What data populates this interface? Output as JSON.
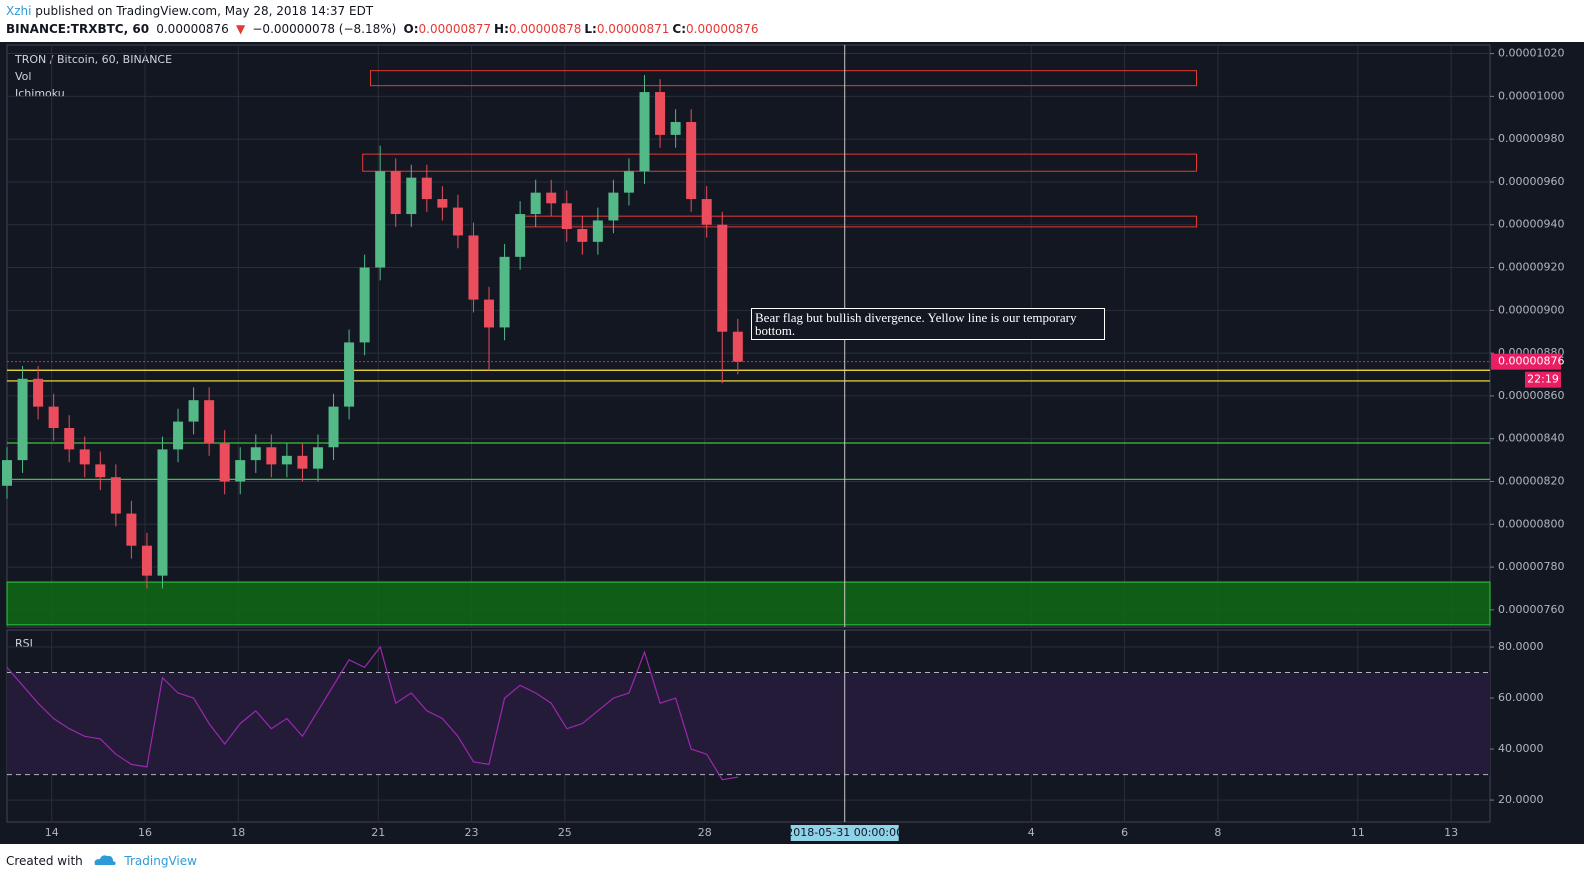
{
  "header": {
    "author": "Xzhi",
    "published": "published on TradingView.com, May 28, 2018 14:37 EDT",
    "symbol": "BINANCE:TRXBTC, 60",
    "price": "0.00000876",
    "arrow": "▼",
    "change": "−0.00000078 (−8.18%)",
    "ohlc": [
      {
        "key": "O:",
        "value": "0.00000877"
      },
      {
        "key": "H:",
        "value": "0.00000878"
      },
      {
        "key": "L:",
        "value": "0.00000871"
      },
      {
        "key": "C:",
        "value": "0.00000876"
      }
    ]
  },
  "legend": {
    "title": "TRON / Bitcoin, 60, BINANCE",
    "items": [
      "Vol",
      "Ichimoku"
    ]
  },
  "annotation": "Bear flag but bullish divergence. Yellow line is our temporary bottom.",
  "footer": {
    "created": "Created with",
    "brand": "TradingView"
  },
  "chart_data": {
    "type": "candlestick",
    "up_color": "#53b987",
    "down_color": "#eb4d5c",
    "grid": true,
    "xlim": [
      "2018-05-13 01:00",
      "2018-06-13 20:00"
    ],
    "xticks": [
      {
        "value": "2018-05-14",
        "label": "14"
      },
      {
        "value": "2018-05-16",
        "label": "16"
      },
      {
        "value": "2018-05-18",
        "label": "18"
      },
      {
        "value": "2018-05-21",
        "label": "21"
      },
      {
        "value": "2018-05-23",
        "label": "23"
      },
      {
        "value": "2018-05-25",
        "label": "25"
      },
      {
        "value": "2018-05-28",
        "label": "28"
      },
      {
        "value": "2018-06-04",
        "label": "4"
      },
      {
        "value": "2018-06-06",
        "label": "6"
      },
      {
        "value": "2018-06-08",
        "label": "8"
      },
      {
        "value": "2018-06-11",
        "label": "11"
      },
      {
        "value": "2018-06-13",
        "label": "13"
      }
    ],
    "ylim": [
      7.52e-06,
      1.024e-05
    ],
    "yticks": [
      {
        "value": 1.02e-05,
        "label": "0.00001020"
      },
      {
        "value": 1e-05,
        "label": "0.00001000"
      },
      {
        "value": 9.8e-06,
        "label": "0.00000980"
      },
      {
        "value": 9.6e-06,
        "label": "0.00000960"
      },
      {
        "value": 9.4e-06,
        "label": "0.00000940"
      },
      {
        "value": 9.2e-06,
        "label": "0.00000920"
      },
      {
        "value": 9e-06,
        "label": "0.00000900"
      },
      {
        "value": 8.8e-06,
        "label": "0.00000880"
      },
      {
        "value": 8.6e-06,
        "label": "0.00000860"
      },
      {
        "value": 8.4e-06,
        "label": "0.00000840"
      },
      {
        "value": 8.2e-06,
        "label": "0.00000820"
      },
      {
        "value": 8e-06,
        "label": "0.00000800"
      },
      {
        "value": 7.8e-06,
        "label": "0.00000780"
      },
      {
        "value": 7.6e-06,
        "label": "0.00000760"
      }
    ],
    "x": [
      "2018-05-13 01:00",
      "2018-05-13 09:00",
      "2018-05-13 17:00",
      "2018-05-14 01:00",
      "2018-05-14 09:00",
      "2018-05-14 17:00",
      "2018-05-15 01:00",
      "2018-05-15 09:00",
      "2018-05-15 17:00",
      "2018-05-16 01:00",
      "2018-05-16 09:00",
      "2018-05-16 17:00",
      "2018-05-17 01:00",
      "2018-05-17 09:00",
      "2018-05-17 17:00",
      "2018-05-18 01:00",
      "2018-05-18 09:00",
      "2018-05-18 17:00",
      "2018-05-19 01:00",
      "2018-05-19 09:00",
      "2018-05-19 17:00",
      "2018-05-20 01:00",
      "2018-05-20 09:00",
      "2018-05-20 17:00",
      "2018-05-21 01:00",
      "2018-05-21 09:00",
      "2018-05-21 17:00",
      "2018-05-22 01:00",
      "2018-05-22 09:00",
      "2018-05-22 17:00",
      "2018-05-23 01:00",
      "2018-05-23 09:00",
      "2018-05-23 17:00",
      "2018-05-24 01:00",
      "2018-05-24 09:00",
      "2018-05-24 17:00",
      "2018-05-25 01:00",
      "2018-05-25 09:00",
      "2018-05-25 17:00",
      "2018-05-26 01:00",
      "2018-05-26 09:00",
      "2018-05-26 17:00",
      "2018-05-27 01:00",
      "2018-05-27 09:00",
      "2018-05-27 17:00",
      "2018-05-28 01:00",
      "2018-05-28 09:00",
      "2018-05-28 17:00"
    ],
    "open": [
      8.18e-06,
      8.3e-06,
      8.68e-06,
      8.55e-06,
      8.45e-06,
      8.35e-06,
      8.28e-06,
      8.22e-06,
      8.05e-06,
      7.9e-06,
      7.76e-06,
      8.35e-06,
      8.48e-06,
      8.58e-06,
      8.38e-06,
      8.2e-06,
      8.3e-06,
      8.36e-06,
      8.28e-06,
      8.32e-06,
      8.26e-06,
      8.36e-06,
      8.55e-06,
      8.85e-06,
      9.2e-06,
      9.65e-06,
      9.45e-06,
      9.62e-06,
      9.52e-06,
      9.48e-06,
      9.35e-06,
      9.05e-06,
      8.92e-06,
      9.25e-06,
      9.45e-06,
      9.55e-06,
      9.5e-06,
      9.38e-06,
      9.32e-06,
      9.42e-06,
      9.55e-06,
      9.65e-06,
      1.002e-05,
      9.82e-06,
      9.88e-06,
      9.52e-06,
      9.4e-06,
      8.9e-06
    ],
    "high": [
      8.36e-06,
      8.74e-06,
      8.74e-06,
      8.61e-06,
      8.51e-06,
      8.41e-06,
      8.34e-06,
      8.28e-06,
      8.11e-06,
      7.96e-06,
      8.41e-06,
      8.54e-06,
      8.64e-06,
      8.64e-06,
      8.44e-06,
      8.36e-06,
      8.42e-06,
      8.42e-06,
      8.38e-06,
      8.38e-06,
      8.42e-06,
      8.61e-06,
      8.91e-06,
      9.26e-06,
      9.77e-06,
      9.71e-06,
      9.68e-06,
      9.68e-06,
      9.58e-06,
      9.54e-06,
      9.41e-06,
      9.11e-06,
      9.31e-06,
      9.51e-06,
      9.61e-06,
      9.61e-06,
      9.56e-06,
      9.44e-06,
      9.48e-06,
      9.61e-06,
      9.71e-06,
      1.01e-05,
      1.008e-05,
      9.94e-06,
      9.94e-06,
      9.58e-06,
      9.46e-06,
      8.96e-06
    ],
    "low": [
      8.12e-06,
      8.24e-06,
      8.49e-06,
      8.39e-06,
      8.29e-06,
      8.22e-06,
      8.16e-06,
      7.99e-06,
      7.84e-06,
      7.7e-06,
      7.7e-06,
      8.29e-06,
      8.42e-06,
      8.32e-06,
      8.14e-06,
      8.14e-06,
      8.24e-06,
      8.22e-06,
      8.22e-06,
      8.2e-06,
      8.2e-06,
      8.3e-06,
      8.49e-06,
      8.79e-06,
      9.14e-06,
      9.39e-06,
      9.39e-06,
      9.46e-06,
      9.42e-06,
      9.29e-06,
      8.99e-06,
      8.72e-06,
      8.86e-06,
      9.19e-06,
      9.39e-06,
      9.44e-06,
      9.32e-06,
      9.26e-06,
      9.26e-06,
      9.36e-06,
      9.49e-06,
      9.59e-06,
      9.76e-06,
      9.76e-06,
      9.46e-06,
      9.34e-06,
      8.66e-06,
      8.7e-06
    ],
    "close": [
      8.3e-06,
      8.68e-06,
      8.55e-06,
      8.45e-06,
      8.35e-06,
      8.28e-06,
      8.22e-06,
      8.05e-06,
      7.9e-06,
      7.76e-06,
      8.35e-06,
      8.48e-06,
      8.58e-06,
      8.38e-06,
      8.2e-06,
      8.3e-06,
      8.36e-06,
      8.28e-06,
      8.32e-06,
      8.26e-06,
      8.36e-06,
      8.55e-06,
      8.85e-06,
      9.2e-06,
      9.65e-06,
      9.45e-06,
      9.62e-06,
      9.52e-06,
      9.48e-06,
      9.35e-06,
      9.05e-06,
      8.92e-06,
      9.25e-06,
      9.45e-06,
      9.55e-06,
      9.5e-06,
      9.38e-06,
      9.32e-06,
      9.42e-06,
      9.55e-06,
      9.65e-06,
      1.002e-05,
      9.82e-06,
      9.88e-06,
      9.52e-06,
      9.4e-06,
      8.9e-06,
      8.76e-06
    ],
    "last_price": {
      "value": 8.76e-06,
      "color": "#e91e63",
      "timer": "22:19"
    },
    "drawings": {
      "rectangles": [
        {
          "x": [
            "2018-05-20 20:00",
            "2018-06-07 13:00"
          ],
          "y": [
            1.005e-05,
            1.012e-05
          ],
          "color": "#e53935"
        },
        {
          "x": [
            "2018-05-20 16:00",
            "2018-06-07 13:00"
          ],
          "y": [
            9.65e-06,
            9.73e-06
          ],
          "color": "#e53935"
        },
        {
          "x": [
            "2018-05-24 00:00",
            "2018-06-07 13:00"
          ],
          "y": [
            9.39e-06,
            9.44e-06
          ],
          "color": "#e53935"
        },
        {
          "y": [
            7.53e-06,
            7.73e-06
          ],
          "color": "#2ecc40",
          "fill": "#116a14"
        }
      ],
      "hlines": [
        {
          "value": 8.72e-06,
          "color": "#ffeb3b"
        },
        {
          "value": 8.67e-06,
          "color": "#ffeb3b"
        },
        {
          "value": 8.38e-06,
          "color": "#3ec43e"
        },
        {
          "value": 8.21e-06,
          "color": "#3ec43e"
        }
      ]
    },
    "crosshair_label": "2018-05-31 00:00:00",
    "rsi": {
      "title": "RSI",
      "color": "#9c27b0",
      "band_color": "#241b38",
      "ylim": [
        11.4,
        85.9
      ],
      "bands": [
        30,
        70
      ],
      "yticks": [
        {
          "value": 80,
          "label": "80.0000"
        },
        {
          "value": 60,
          "label": "60.0000"
        },
        {
          "value": 40,
          "label": "40.0000"
        },
        {
          "value": 20,
          "label": "20.0000"
        }
      ],
      "values": [
        72,
        65,
        58,
        52,
        48,
        45,
        44,
        38,
        34,
        33,
        68,
        62,
        60,
        50,
        42,
        50,
        55,
        48,
        52,
        45,
        55,
        65,
        75,
        72,
        80,
        58,
        62,
        55,
        52,
        45,
        35,
        34,
        60,
        65,
        62,
        58,
        48,
        50,
        55,
        60,
        62,
        78,
        58,
        60,
        40,
        38,
        28,
        29
      ]
    }
  }
}
